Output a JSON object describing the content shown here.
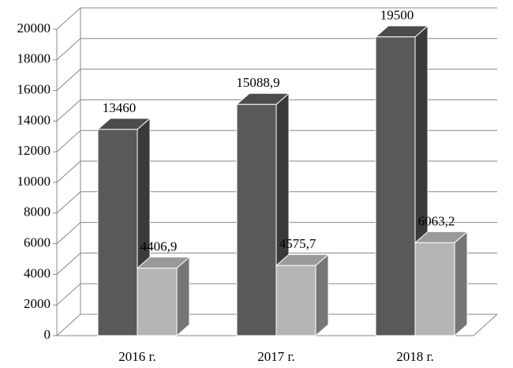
{
  "chart_data": {
    "type": "bar3d",
    "categories": [
      "2016 г.",
      "2017 г.",
      "2018 г."
    ],
    "series": [
      {
        "color": "#595959",
        "values": [
          13460,
          15088.9,
          19500
        ],
        "value_labels": [
          "13460",
          "15088,9",
          "19500"
        ]
      },
      {
        "color": "#b5b5b5",
        "values": [
          4406.9,
          4575.7,
          6063.2
        ],
        "value_labels": [
          "4406,9",
          "4575,7",
          "6063,2"
        ]
      }
    ],
    "ylim": [
      0,
      20000
    ],
    "yticks": [
      0,
      2000,
      4000,
      6000,
      8000,
      10000,
      12000,
      14000,
      16000,
      18000,
      20000
    ],
    "grid": true
  }
}
